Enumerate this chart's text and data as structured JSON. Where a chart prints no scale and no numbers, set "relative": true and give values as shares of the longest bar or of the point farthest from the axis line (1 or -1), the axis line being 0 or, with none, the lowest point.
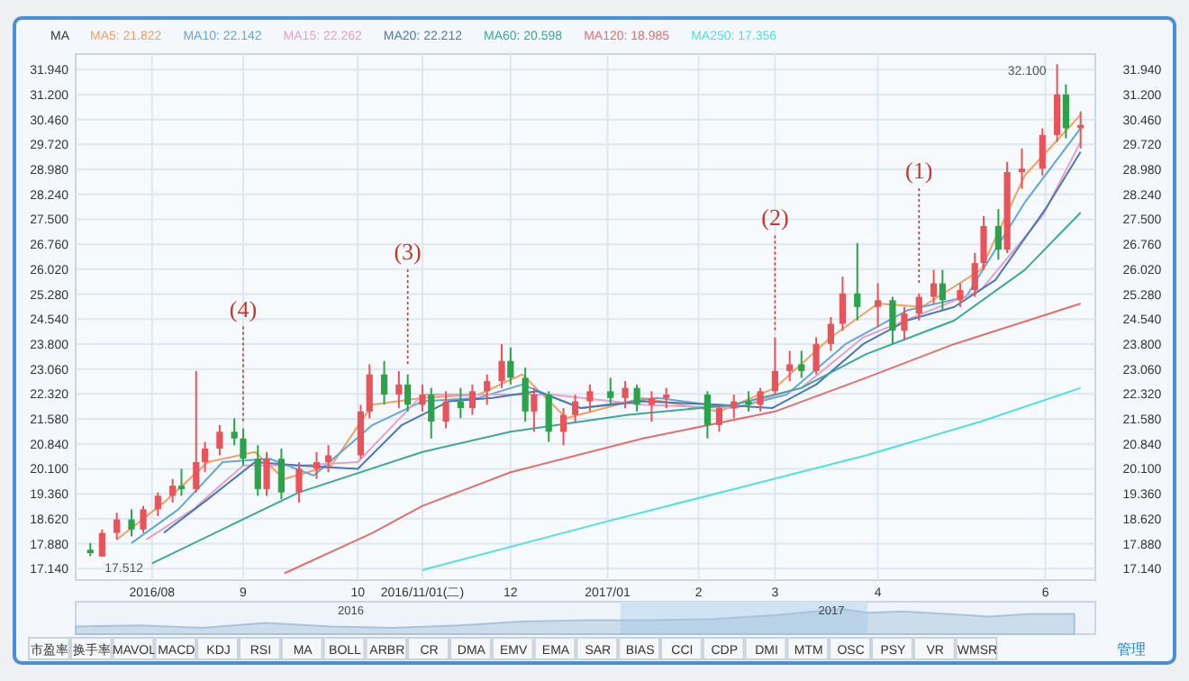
{
  "chart_data": [
    {
      "type": "candlestick",
      "legend_title": "MA",
      "legend": "top left",
      "grid": true,
      "x": [
        "2016-07-11",
        "2016-07-15",
        "2016-07-20",
        "2016-07-25",
        "2016-07-29",
        "2016-08-03",
        "2016-08-08",
        "2016-08-11",
        "2016-08-16",
        "2016-08-19",
        "2016-08-24",
        "2016-08-29",
        "2016-09-01",
        "2016-09-06",
        "2016-09-09",
        "2016-09-14",
        "2016-09-20",
        "2016-09-26",
        "2016-09-30",
        "2016-10-11",
        "2016-10-14",
        "2016-10-19",
        "2016-10-24",
        "2016-10-27",
        "2016-11-01",
        "2016-11-04",
        "2016-11-09",
        "2016-11-14",
        "2016-11-18",
        "2016-11-23",
        "2016-11-28",
        "2016-12-01",
        "2016-12-06",
        "2016-12-09",
        "2016-12-14",
        "2016-12-19",
        "2016-12-23",
        "2016-12-28",
        "2017-01-04",
        "2017-01-09",
        "2017-01-13",
        "2017-01-18",
        "2017-01-23",
        "2017-02-06",
        "2017-02-10",
        "2017-02-15",
        "2017-02-20",
        "2017-02-24",
        "2017-03-01",
        "2017-03-06",
        "2017-03-10",
        "2017-03-15",
        "2017-03-20",
        "2017-03-24",
        "2017-03-29",
        "2017-04-05",
        "2017-04-10",
        "2017-04-14",
        "2017-04-19",
        "2017-04-24",
        "2017-04-27",
        "2017-05-03",
        "2017-05-08",
        "2017-05-11",
        "2017-05-16",
        "2017-05-19",
        "2017-05-24",
        "2017-05-31",
        "2017-06-05",
        "2017-06-08",
        "2017-06-13"
      ],
      "ohlc": [
        [
          17.7,
          17.9,
          17.512,
          17.6
        ],
        [
          17.5,
          18.3,
          17.5,
          18.2
        ],
        [
          18.2,
          18.8,
          18.0,
          18.6
        ],
        [
          18.6,
          18.9,
          18.1,
          18.3
        ],
        [
          18.3,
          19.0,
          18.2,
          18.9
        ],
        [
          18.9,
          19.4,
          18.7,
          19.3
        ],
        [
          19.3,
          19.8,
          19.1,
          19.6
        ],
        [
          19.6,
          20.1,
          19.3,
          19.5
        ],
        [
          19.5,
          23.0,
          19.4,
          20.3
        ],
        [
          20.3,
          20.9,
          20.0,
          20.7
        ],
        [
          20.7,
          21.4,
          20.5,
          21.2
        ],
        [
          21.2,
          21.6,
          20.8,
          21.0
        ],
        [
          21.0,
          21.3,
          20.2,
          20.4
        ],
        [
          20.4,
          20.8,
          19.3,
          19.5
        ],
        [
          19.5,
          20.6,
          19.3,
          20.4
        ],
        [
          20.4,
          20.7,
          19.2,
          19.4
        ],
        [
          19.4,
          20.3,
          19.1,
          20.1
        ],
        [
          20.1,
          20.6,
          19.8,
          20.3
        ],
        [
          20.3,
          20.8,
          20.0,
          20.5
        ],
        [
          20.5,
          22.0,
          20.4,
          21.8
        ],
        [
          21.8,
          23.2,
          21.6,
          22.9
        ],
        [
          22.9,
          23.3,
          22.0,
          22.3
        ],
        [
          22.3,
          23.0,
          21.9,
          22.6
        ],
        [
          22.6,
          22.9,
          21.8,
          22.0
        ],
        [
          22.0,
          22.6,
          21.8,
          22.3
        ],
        [
          22.3,
          22.5,
          21.0,
          21.5
        ],
        [
          21.5,
          22.4,
          21.3,
          22.1
        ],
        [
          22.1,
          22.5,
          21.6,
          21.9
        ],
        [
          21.9,
          22.6,
          21.7,
          22.4
        ],
        [
          22.4,
          22.9,
          22.0,
          22.7
        ],
        [
          22.7,
          23.8,
          22.5,
          23.3
        ],
        [
          23.3,
          23.7,
          22.6,
          22.8
        ],
        [
          22.8,
          23.1,
          21.5,
          21.8
        ],
        [
          21.8,
          22.5,
          21.2,
          22.3
        ],
        [
          22.3,
          22.4,
          20.9,
          21.2
        ],
        [
          21.2,
          21.9,
          20.8,
          21.7
        ],
        [
          21.7,
          22.3,
          21.5,
          22.1
        ],
        [
          22.1,
          22.6,
          21.8,
          22.4
        ],
        [
          22.4,
          22.8,
          22.0,
          22.2
        ],
        [
          22.2,
          22.7,
          21.9,
          22.5
        ],
        [
          22.5,
          22.6,
          21.8,
          22.0
        ],
        [
          22.0,
          22.4,
          21.5,
          22.2
        ],
        [
          22.2,
          22.5,
          21.9,
          22.3
        ],
        [
          22.3,
          22.4,
          21.0,
          21.4
        ],
        [
          21.4,
          22.0,
          21.2,
          21.9
        ],
        [
          21.9,
          22.3,
          21.6,
          22.1
        ],
        [
          22.1,
          22.4,
          21.8,
          22.0
        ],
        [
          22.0,
          22.5,
          21.8,
          22.4
        ],
        [
          22.4,
          24.0,
          22.3,
          23.0
        ],
        [
          23.0,
          23.6,
          22.7,
          23.2
        ],
        [
          23.2,
          23.6,
          22.8,
          23.0
        ],
        [
          23.0,
          24.0,
          22.9,
          23.8
        ],
        [
          23.8,
          24.6,
          23.6,
          24.4
        ],
        [
          24.4,
          25.8,
          24.2,
          25.3
        ],
        [
          25.3,
          26.8,
          24.5,
          24.9
        ],
        [
          24.9,
          25.6,
          24.3,
          25.1
        ],
        [
          25.1,
          25.2,
          23.8,
          24.2
        ],
        [
          24.2,
          24.9,
          23.9,
          24.7
        ],
        [
          24.7,
          25.3,
          24.5,
          25.2
        ],
        [
          25.2,
          26.0,
          25.0,
          25.6
        ],
        [
          25.6,
          26.0,
          24.8,
          25.1
        ],
        [
          25.1,
          25.6,
          24.9,
          25.4
        ],
        [
          25.4,
          26.5,
          25.2,
          26.2
        ],
        [
          26.2,
          27.6,
          26.0,
          27.3
        ],
        [
          27.3,
          27.8,
          26.3,
          26.6
        ],
        [
          26.6,
          29.2,
          26.5,
          28.9
        ],
        [
          28.9,
          29.6,
          28.4,
          29.0
        ],
        [
          29.0,
          30.2,
          28.8,
          30.0
        ],
        [
          30.0,
          32.1,
          29.8,
          31.2
        ],
        [
          31.2,
          31.5,
          29.9,
          30.2
        ],
        [
          30.2,
          30.7,
          29.6,
          30.3
        ]
      ],
      "colors": [
        "#2aa34a",
        "#e8545a",
        "#e8545a",
        "#2aa34a",
        "#e8545a",
        "#e8545a",
        "#e8545a",
        "#2aa34a",
        "#e8545a",
        "#e8545a",
        "#e8545a",
        "#2aa34a",
        "#2aa34a",
        "#2aa34a",
        "#e8545a",
        "#2aa34a",
        "#e8545a",
        "#e8545a",
        "#e8545a",
        "#e8545a",
        "#e8545a",
        "#2aa34a",
        "#e8545a",
        "#2aa34a",
        "#e8545a",
        "#2aa34a",
        "#e8545a",
        "#2aa34a",
        "#e8545a",
        "#e8545a",
        "#e8545a",
        "#2aa34a",
        "#2aa34a",
        "#e8545a",
        "#2aa34a",
        "#e8545a",
        "#e8545a",
        "#e8545a",
        "#2aa34a",
        "#e8545a",
        "#2aa34a",
        "#e8545a",
        "#e8545a",
        "#2aa34a",
        "#e8545a",
        "#e8545a",
        "#2aa34a",
        "#e8545a",
        "#e8545a",
        "#e8545a",
        "#2aa34a",
        "#e8545a",
        "#e8545a",
        "#e8545a",
        "#2aa34a",
        "#e8545a",
        "#2aa34a",
        "#e8545a",
        "#e8545a",
        "#e8545a",
        "#2aa34a",
        "#e8545a",
        "#e8545a",
        "#e8545a",
        "#2aa34a",
        "#e8545a",
        "#e8545a",
        "#e8545a",
        "#e8545a",
        "#2aa34a",
        "#e8545a"
      ],
      "series": [
        {
          "name": "MA5: 21.822",
          "color": "#f0a060",
          "type": "line",
          "x": [
            "2016-07-20",
            "2016-08-05",
            "2016-08-20",
            "2016-09-05",
            "2016-09-15",
            "2016-10-01",
            "2016-10-15",
            "2016-11-01",
            "2016-11-20",
            "2016-12-05",
            "2016-12-20",
            "2017-01-15",
            "2017-02-10",
            "2017-03-01",
            "2017-03-20",
            "2017-04-05",
            "2017-04-20",
            "2017-05-10",
            "2017-05-25",
            "2017-06-13"
          ],
          "values": [
            18.0,
            19.1,
            20.3,
            20.6,
            19.8,
            20.2,
            22.0,
            22.2,
            22.3,
            22.9,
            21.6,
            22.2,
            21.8,
            22.5,
            24.0,
            25.0,
            24.9,
            26.0,
            28.8,
            30.6
          ]
        },
        {
          "name": "MA10: 22.142",
          "color": "#5fa8d8",
          "type": "line",
          "x": [
            "2016-07-25",
            "2016-08-10",
            "2016-08-25",
            "2016-09-10",
            "2016-09-25",
            "2016-10-15",
            "2016-11-01",
            "2016-11-20",
            "2016-12-05",
            "2016-12-25",
            "2017-01-20",
            "2017-02-15",
            "2017-03-05",
            "2017-03-25",
            "2017-04-15",
            "2017-05-05",
            "2017-05-25",
            "2017-06-13"
          ],
          "values": [
            17.9,
            18.9,
            20.3,
            20.4,
            19.9,
            21.4,
            22.1,
            22.2,
            22.6,
            21.9,
            22.2,
            21.9,
            22.3,
            23.8,
            24.8,
            25.2,
            28.0,
            30.2
          ]
        },
        {
          "name": "MA15: 22.262",
          "color": "#e8a0c8",
          "type": "line",
          "x": [
            "2016-07-30",
            "2016-08-15",
            "2016-09-01",
            "2016-09-20",
            "2016-10-10",
            "2016-11-01",
            "2016-11-25",
            "2016-12-15",
            "2017-01-15",
            "2017-02-15",
            "2017-03-10",
            "2017-03-31",
            "2017-04-20",
            "2017-05-10",
            "2017-05-31",
            "2017-06-13"
          ],
          "values": [
            18.0,
            18.9,
            20.2,
            20.2,
            20.3,
            22.3,
            22.3,
            22.3,
            22.0,
            21.9,
            22.5,
            24.0,
            24.7,
            25.4,
            27.6,
            29.8
          ]
        },
        {
          "name": "MA20: 22.212",
          "color": "#4a78b0",
          "type": "line",
          "x": [
            "2016-08-05",
            "2016-08-20",
            "2016-09-05",
            "2016-09-20",
            "2016-10-10",
            "2016-10-25",
            "2016-11-10",
            "2016-11-25",
            "2016-12-10",
            "2016-12-25",
            "2017-01-15",
            "2017-02-10",
            "2017-02-28",
            "2017-03-15",
            "2017-03-31",
            "2017-04-15",
            "2017-05-01",
            "2017-05-15",
            "2017-06-01",
            "2017-06-13"
          ],
          "values": [
            18.2,
            19.2,
            20.3,
            20.2,
            20.1,
            21.4,
            22.1,
            22.2,
            22.4,
            21.9,
            22.1,
            22.0,
            21.9,
            22.6,
            23.8,
            24.5,
            24.9,
            25.7,
            27.8,
            29.5
          ]
        },
        {
          "name": "MA60: 20.598",
          "color": "#3aa89a",
          "type": "line",
          "x": [
            "2016-08-01",
            "2016-09-20",
            "2016-11-01",
            "2016-12-01",
            "2017-01-10",
            "2017-02-15",
            "2017-03-10",
            "2017-04-01",
            "2017-05-01",
            "2017-05-25",
            "2017-06-13"
          ],
          "values": [
            17.3,
            19.4,
            20.6,
            21.2,
            21.7,
            22.0,
            22.5,
            23.5,
            24.5,
            26.0,
            27.7
          ]
        },
        {
          "name": "MA120: 18.985",
          "color": "#e07070",
          "type": "line",
          "x": [
            "2016-09-15",
            "2016-10-15",
            "2016-11-01",
            "2016-12-01",
            "2017-01-15",
            "2017-03-01",
            "2017-04-01",
            "2017-05-01",
            "2017-06-13"
          ],
          "values": [
            17.0,
            18.2,
            19.0,
            20.0,
            21.0,
            21.8,
            22.8,
            23.8,
            25.0
          ]
        },
        {
          "name": "MA250: 17.356",
          "color": "#50e0e0",
          "type": "line",
          "x": [
            "2016-11-01",
            "2017-01-01",
            "2017-02-15",
            "2017-04-01",
            "2017-05-10",
            "2017-06-13"
          ],
          "values": [
            17.1,
            18.5,
            19.5,
            20.5,
            21.5,
            22.5
          ]
        }
      ],
      "annotations": [
        {
          "text": "(4)",
          "x": "2016-09-01",
          "y": 21.3
        },
        {
          "text": "(3)",
          "x": "2016-10-27",
          "y": 23.0
        },
        {
          "text": "(2)",
          "x": "2017-03-01",
          "y": 24.0
        },
        {
          "text": "(1)",
          "x": "2017-04-19",
          "y": 25.4
        },
        {
          "text": "32.100",
          "x": "2017-06-05",
          "y": 32.1
        },
        {
          "text": "17.512",
          "x": "2016-07-11",
          "y": 17.512
        }
      ],
      "xlim": [
        "2016-07-06",
        "2017-06-18"
      ],
      "xticks": [
        {
          "value": "2016-08-01",
          "label": "2016/08"
        },
        {
          "value": "2016-09-01",
          "label": "9"
        },
        {
          "value": "2016-10-10",
          "label": "10"
        },
        {
          "value": "2016-11-01",
          "label": "2016/11/01(二)"
        },
        {
          "value": "2016-12-01",
          "label": "12"
        },
        {
          "value": "2017-01-03",
          "label": "2017/01"
        },
        {
          "value": "2017-02-03",
          "label": "2"
        },
        {
          "value": "2017-03-01",
          "label": "3"
        },
        {
          "value": "2017-04-05",
          "label": "4"
        },
        {
          "value": "2017-06-01",
          "label": "6"
        }
      ],
      "ylim": [
        16.8,
        32.4
      ],
      "yticks": [
        {
          "value": 17.14,
          "label": "17.140"
        },
        {
          "value": 17.88,
          "label": "17.880"
        },
        {
          "value": 18.62,
          "label": "18.620"
        },
        {
          "value": 19.36,
          "label": "19.360"
        },
        {
          "value": 20.1,
          "label": "20.100"
        },
        {
          "value": 20.84,
          "label": "20.840"
        },
        {
          "value": 21.58,
          "label": "21.580"
        },
        {
          "value": 22.32,
          "label": "22.320"
        },
        {
          "value": 23.06,
          "label": "23.060"
        },
        {
          "value": 23.8,
          "label": "23.800"
        },
        {
          "value": 24.54,
          "label": "24.540"
        },
        {
          "value": 25.28,
          "label": "25.280"
        },
        {
          "value": 26.02,
          "label": "26.020"
        },
        {
          "value": 26.76,
          "label": "26.760"
        },
        {
          "value": 27.5,
          "label": "27.500"
        },
        {
          "value": 28.24,
          "label": "28.240"
        },
        {
          "value": 28.98,
          "label": "28.980"
        },
        {
          "value": 29.72,
          "label": "29.720"
        },
        {
          "value": 30.46,
          "label": "30.460"
        },
        {
          "value": 31.2,
          "label": "31.200"
        },
        {
          "value": 31.94,
          "label": "31.940"
        }
      ],
      "y2lim": [
        16.8,
        32.4
      ],
      "y2ticks": [
        {
          "value": 17.14,
          "label": "17.140"
        },
        {
          "value": 17.88,
          "label": "17.880"
        },
        {
          "value": 18.62,
          "label": "18.620"
        },
        {
          "value": 19.36,
          "label": "19.360"
        },
        {
          "value": 20.1,
          "label": "20.100"
        },
        {
          "value": 20.84,
          "label": "20.840"
        },
        {
          "value": 21.58,
          "label": "21.580"
        },
        {
          "value": 22.32,
          "label": "22.320"
        },
        {
          "value": 23.06,
          "label": "23.060"
        },
        {
          "value": 23.8,
          "label": "23.800"
        },
        {
          "value": 24.54,
          "label": "24.540"
        },
        {
          "value": 25.28,
          "label": "25.280"
        },
        {
          "value": 26.02,
          "label": "26.020"
        },
        {
          "value": 26.76,
          "label": "26.760"
        },
        {
          "value": 27.5,
          "label": "27.500"
        },
        {
          "value": 28.24,
          "label": "28.240"
        },
        {
          "value": 28.98,
          "label": "28.980"
        },
        {
          "value": 29.72,
          "label": "29.720"
        },
        {
          "value": 30.46,
          "label": "30.460"
        },
        {
          "value": 31.2,
          "label": "31.200"
        },
        {
          "value": 31.94,
          "label": "31.940"
        }
      ]
    },
    {
      "type": "area",
      "relative": true,
      "color": "#a8c4dc",
      "x": [
        "2015-12-01",
        "2016-01-15",
        "2016-03-01",
        "2016-04-15",
        "2016-06-01",
        "2016-07-15",
        "2016-09-01",
        "2016-10-15",
        "2016-12-01",
        "2017-01-15",
        "2017-03-01",
        "2017-04-15",
        "2017-06-01",
        "2017-06-20",
        "2017-07-15",
        "2017-08-15",
        "2017-09-15",
        "2017-10-15",
        "2017-11-15"
      ],
      "values": [
        0.3,
        0.35,
        0.25,
        0.45,
        0.3,
        0.25,
        0.35,
        0.5,
        0.55,
        0.55,
        0.6,
        0.75,
        1.0,
        0.85,
        0.9,
        0.8,
        0.7,
        0.8,
        0.8
      ],
      "xlim": [
        "2015-12-01",
        "2017-11-30"
      ],
      "xticks": [
        {
          "value": "2016-06-15",
          "label": "2016"
        },
        {
          "value": "2017-05-25",
          "label": "2017"
        }
      ],
      "bands": [
        {
          "axis": "x",
          "from": "2016-12-25",
          "to": "2017-06-20",
          "color": "#cfe3f5"
        }
      ]
    },
    {
      "type": "other",
      "annotations": [
        "市盈率",
        "换手率",
        "MAVOL",
        "MACD",
        "KDJ",
        "RSI",
        "MA",
        "BOLL",
        "ARBR",
        "CR",
        "DMA",
        "EMV",
        "EMA",
        "SAR",
        "BIAS",
        "CCI",
        "CDP",
        "DMI",
        "MTM",
        "OSC",
        "PSY",
        "VR",
        "WMSR",
        "管理"
      ]
    }
  ]
}
